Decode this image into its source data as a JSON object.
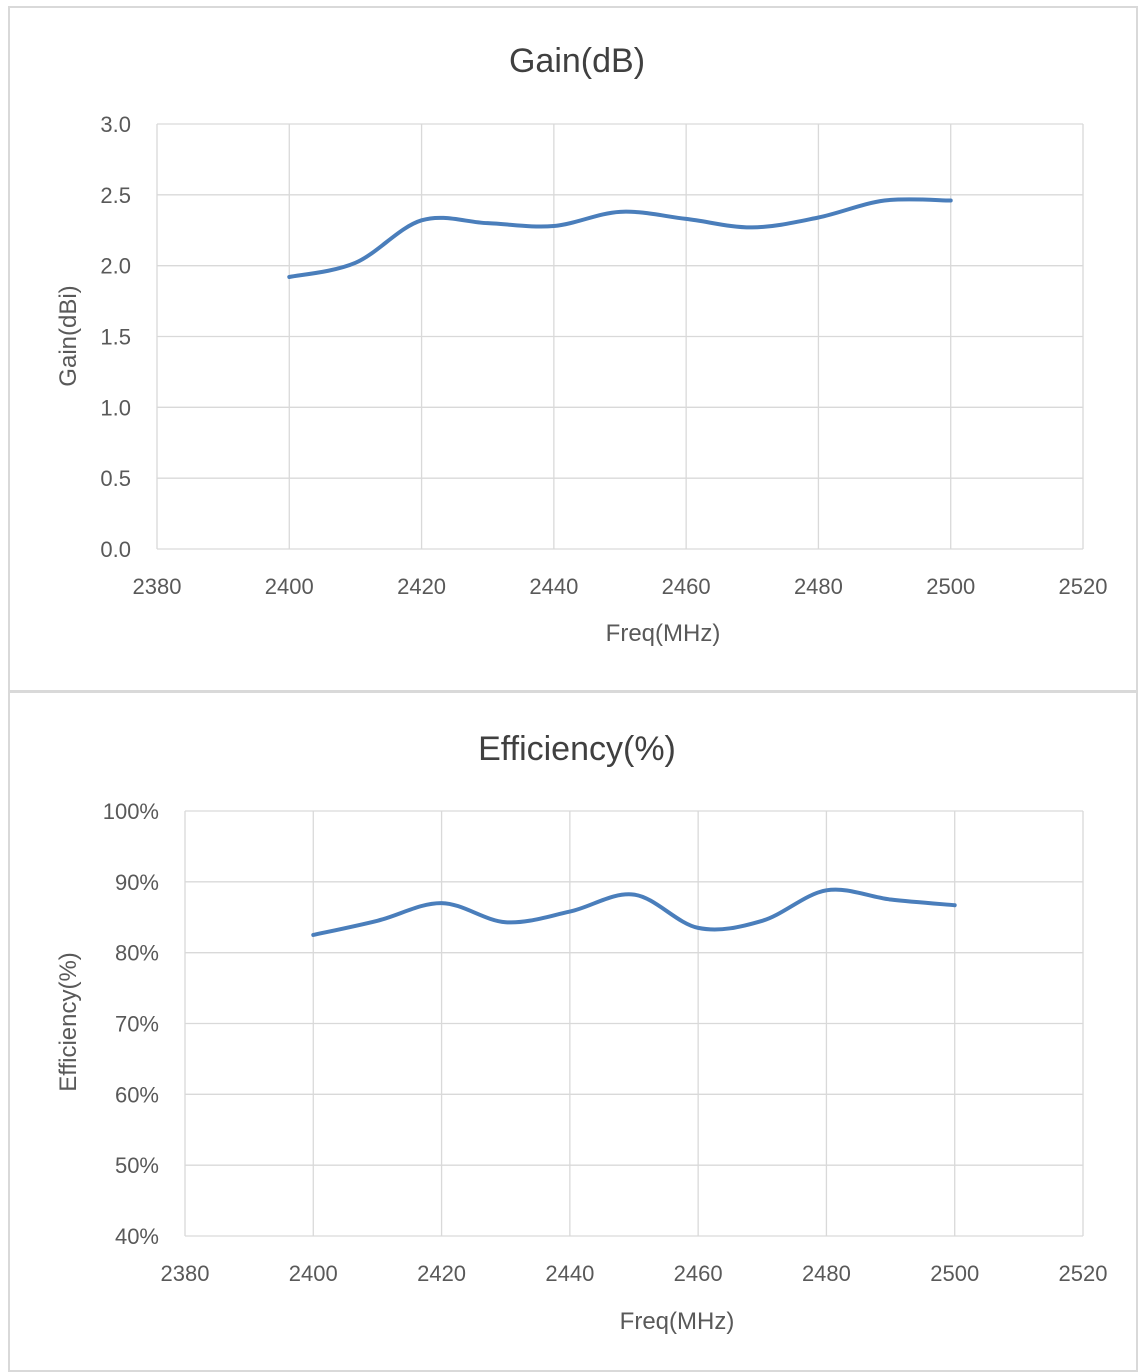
{
  "chart_data": [
    {
      "type": "line",
      "title": "Gain(dB)",
      "xlabel": "Freq(MHz)",
      "ylabel": "Gain(dBi)",
      "xlim": [
        2380,
        2520
      ],
      "ylim": [
        0,
        3.0
      ],
      "x_ticks": [
        "2380",
        "2400",
        "2420",
        "2440",
        "2460",
        "2480",
        "2500",
        "2520"
      ],
      "y_ticks": [
        "0.0",
        "0.5",
        "1.0",
        "1.5",
        "2.0",
        "2.5",
        "3.0"
      ],
      "grid": true,
      "legend": "none",
      "color": "#4a7ebb",
      "series": [
        {
          "x": [
            2400,
            2410,
            2420,
            2430,
            2440,
            2450,
            2460,
            2470,
            2480,
            2490,
            2500
          ],
          "values": [
            1.92,
            2.02,
            2.32,
            2.3,
            2.28,
            2.38,
            2.33,
            2.27,
            2.34,
            2.46,
            2.46
          ]
        }
      ]
    },
    {
      "type": "line",
      "title": "Efficiency(%)",
      "xlabel": "Freq(MHz)",
      "ylabel": "Efficiency(%)",
      "xlim": [
        2380,
        2520
      ],
      "ylim": [
        40,
        100
      ],
      "x_ticks": [
        "2380",
        "2400",
        "2420",
        "2440",
        "2460",
        "2480",
        "2500",
        "2520"
      ],
      "y_ticks": [
        "40%",
        "50%",
        "60%",
        "70%",
        "80%",
        "90%",
        "100%"
      ],
      "grid": true,
      "legend": "none",
      "color": "#4a7ebb",
      "series": [
        {
          "x": [
            2400,
            2410,
            2420,
            2430,
            2440,
            2450,
            2460,
            2470,
            2480,
            2490,
            2500
          ],
          "values": [
            82.5,
            84.5,
            87.0,
            84.3,
            85.8,
            88.2,
            83.5,
            84.5,
            88.8,
            87.5,
            86.7
          ]
        }
      ]
    }
  ]
}
